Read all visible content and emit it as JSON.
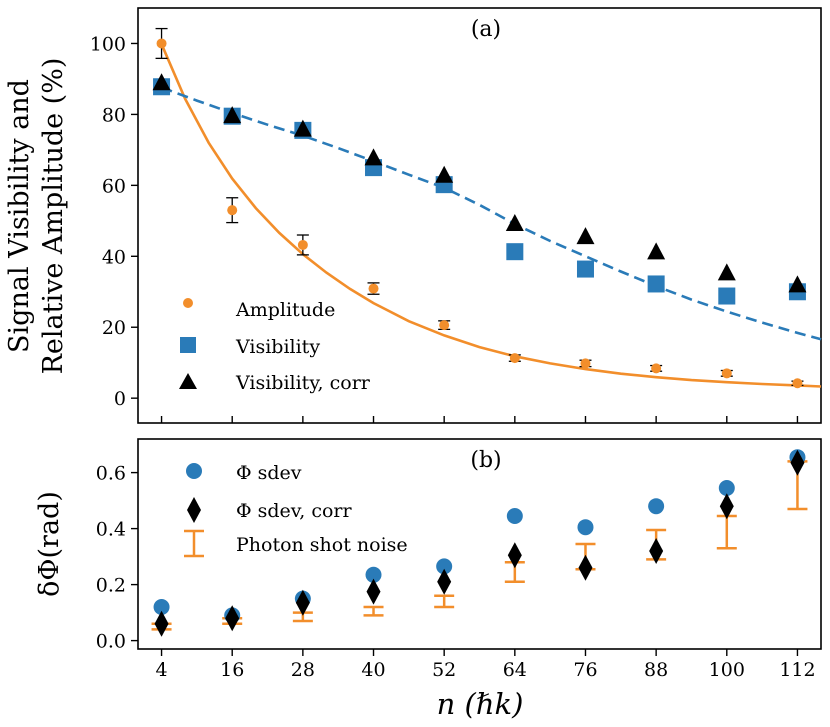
{
  "chart_data": [
    {
      "type": "scatter",
      "panel_label": "(a)",
      "ylabel_line1": "Signal Visibility and",
      "ylabel_line2": "Relative Amplitude (%)",
      "xlim": [
        0,
        116
      ],
      "ylim": [
        -7,
        110
      ],
      "x": [
        4,
        16,
        28,
        40,
        52,
        64,
        76,
        88,
        100,
        112
      ],
      "yticks": [
        0,
        20,
        40,
        60,
        80,
        100
      ],
      "legend": [
        "Amplitude",
        "Visibility",
        "Visibility, corr"
      ],
      "series": [
        {
          "name": "Amplitude",
          "values": [
            100,
            53,
            43.2,
            30.9,
            20.6,
            11.3,
            9.8,
            8.4,
            7,
            4.2
          ],
          "errors": [
            4.2,
            3.5,
            2.8,
            1.6,
            1.2,
            0.9,
            0.9,
            0.8,
            0.8,
            0.6
          ],
          "color": "#f28e2b",
          "marker": "circle"
        },
        {
          "name": "Visibility",
          "values": [
            87.8,
            79.5,
            75.5,
            65,
            60.2,
            41.3,
            36.4,
            32.2,
            28.8,
            30
          ],
          "color": "#2a7bb8",
          "marker": "square"
        },
        {
          "name": "Visibility, corr",
          "values": [
            88.8,
            79.5,
            75.7,
            67.6,
            62.7,
            49.1,
            45.4,
            41.1,
            35.2,
            31.8
          ],
          "color": "#000000",
          "marker": "triangle"
        }
      ],
      "fits": [
        {
          "name": "Amplitude fit",
          "x": [
            4,
            8,
            12,
            16,
            20,
            24,
            28,
            32,
            36,
            40,
            46,
            52,
            58,
            64,
            70,
            76,
            82,
            88,
            94,
            100,
            106,
            112,
            116
          ],
          "y": [
            99.8,
            84.4,
            72,
            61.9,
            53.6,
            46.6,
            40.6,
            35.4,
            30.8,
            26.8,
            21.7,
            17.7,
            14.4,
            11.8,
            9.8,
            8.2,
            6.9,
            5.9,
            5.1,
            4.5,
            4,
            3.6,
            3.3
          ],
          "color": "#f28e2b",
          "style": "solid"
        },
        {
          "name": "Visibility fit",
          "x": [
            4,
            10,
            16,
            22,
            28,
            34,
            40,
            46,
            52,
            58,
            64,
            70,
            76,
            82,
            88,
            94,
            100,
            106,
            112,
            116
          ],
          "y": [
            87.6,
            83.9,
            80.4,
            77.1,
            74,
            70.5,
            66.8,
            63,
            59.3,
            54.5,
            49.1,
            44.3,
            40,
            35.7,
            31.6,
            27.8,
            24.4,
            21.3,
            18.4,
            16.6
          ],
          "color": "#2a7bb8",
          "style": "dashed"
        }
      ]
    },
    {
      "type": "scatter",
      "panel_label": "(b)",
      "ylabel": "δΦ(rad)",
      "xlabel": "n (ℏk)",
      "xlim": [
        0,
        116
      ],
      "ylim": [
        -0.03,
        0.72
      ],
      "x": [
        4,
        16,
        28,
        40,
        52,
        64,
        76,
        88,
        100,
        112
      ],
      "xticks": [
        "4",
        "16",
        "28",
        "40",
        "52",
        "64",
        "76",
        "88",
        "100",
        "112"
      ],
      "yticks": [
        "0.0",
        "0.2",
        "0.4",
        "0.6"
      ],
      "ytick_values": [
        0,
        0.2,
        0.4,
        0.6
      ],
      "legend": [
        "Φ sdev",
        "Φ sdev, corr",
        "Photon shot noise"
      ],
      "series": [
        {
          "name": "Φ sdev",
          "values": [
            0.12,
            0.09,
            0.15,
            0.235,
            0.265,
            0.445,
            0.405,
            0.48,
            0.545,
            0.655
          ],
          "color": "#2a7bb8",
          "marker": "circle"
        },
        {
          "name": "Φ sdev, corr",
          "values": [
            0.06,
            0.08,
            0.135,
            0.175,
            0.21,
            0.305,
            0.26,
            0.32,
            0.48,
            0.635
          ],
          "color": "#000000",
          "marker": "diamond"
        },
        {
          "name": "Photon shot noise",
          "low": [
            0.04,
            0.06,
            0.07,
            0.09,
            0.12,
            0.21,
            0.255,
            0.29,
            0.33,
            0.47
          ],
          "high": [
            0.06,
            0.08,
            0.1,
            0.12,
            0.16,
            0.28,
            0.345,
            0.395,
            0.445,
            0.64
          ],
          "color": "#f28e2b",
          "marker": "errorbar"
        }
      ]
    }
  ]
}
